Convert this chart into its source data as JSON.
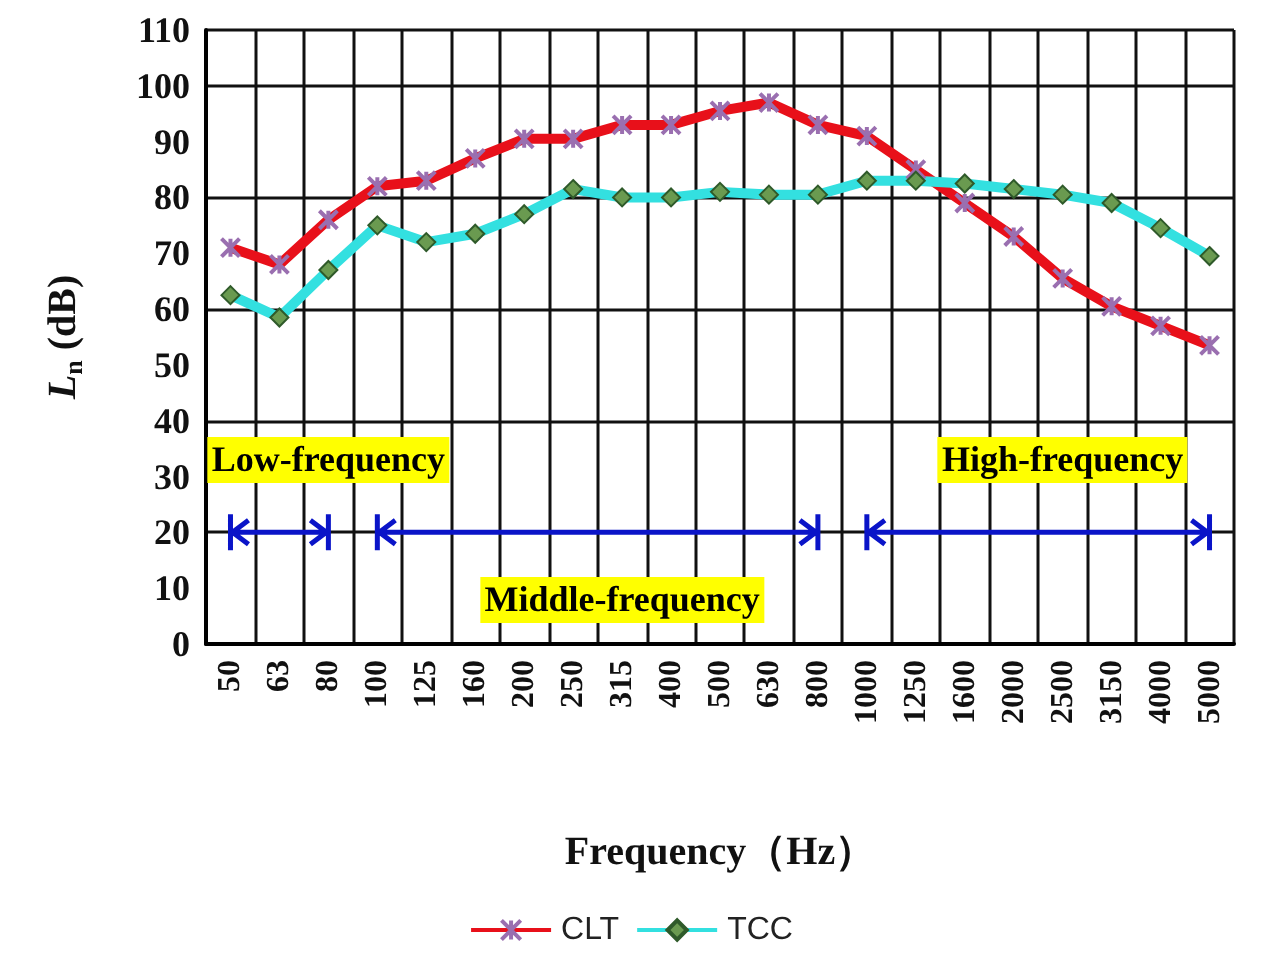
{
  "chart_data": {
    "type": "line",
    "xlabel": "Frequency（Hz）",
    "ylabel": "L$_{n}$ (dB)",
    "categories": [
      "50",
      "63",
      "80",
      "100",
      "125",
      "160",
      "200",
      "250",
      "315",
      "400",
      "500",
      "630",
      "800",
      "1000",
      "1250",
      "1600",
      "2000",
      "2500",
      "3150",
      "4000",
      "5000"
    ],
    "series": [
      {
        "name": "CLT",
        "color": "#e8101a",
        "marker": "cross",
        "values": [
          71,
          68,
          76,
          82,
          83,
          87,
          90.5,
          90.5,
          93,
          93,
          95.5,
          97,
          93,
          91,
          85,
          79,
          73,
          65.5,
          60.5,
          57,
          53.5
        ]
      },
      {
        "name": "TCC",
        "color": "#33e0e0",
        "marker": "diamond",
        "values": [
          62.5,
          58.5,
          67,
          75,
          72,
          73.5,
          77,
          81.5,
          80,
          80,
          81,
          80.5,
          80.5,
          83,
          83,
          82.5,
          81.5,
          80.5,
          79,
          74.5,
          69.5
        ]
      }
    ],
    "ylim": [
      0,
      110
    ],
    "yticks": [
      0,
      10,
      20,
      30,
      40,
      50,
      60,
      70,
      80,
      90,
      100,
      110
    ],
    "grid": true,
    "legend": "bottom",
    "line_style": "solid",
    "annotations": [
      "Low-frequency",
      "Middle-frequency",
      "High-frequency"
    ]
  }
}
